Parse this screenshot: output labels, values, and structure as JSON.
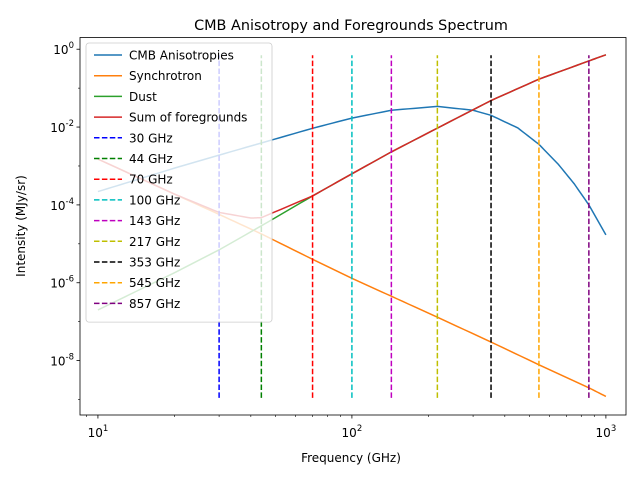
{
  "chart_data": {
    "type": "line",
    "title": "CMB Anisotropy and Foregrounds Spectrum",
    "xlabel": "Frequency (GHz)",
    "ylabel": "Intensity (MJy/sr)",
    "xscale": "log",
    "yscale": "log",
    "xlim": [
      8.5,
      1200
    ],
    "ylim": [
      4e-10,
      2
    ],
    "x_ticks": [
      10,
      100,
      1000
    ],
    "x_tick_labels": [
      "10^1",
      "10^2",
      "10^3"
    ],
    "y_ticks": [
      1e-08,
      1e-06,
      0.0001,
      0.01,
      1
    ],
    "y_tick_labels": [
      "10^-8",
      "10^-6",
      "10^-4",
      "10^-2",
      "10^0"
    ],
    "grid": false,
    "legend_position": "upper-left",
    "series": [
      {
        "name": "CMB Anisotropies",
        "color": "#1f77b4",
        "style": "solid",
        "x": [
          10,
          14,
          20,
          30,
          44,
          70,
          100,
          143,
          217,
          300,
          353,
          450,
          545,
          650,
          750,
          857,
          1000
        ],
        "y": [
          0.00022,
          0.00043,
          0.00088,
          0.0019,
          0.0039,
          0.0093,
          0.017,
          0.027,
          0.034,
          0.027,
          0.02,
          0.0095,
          0.0036,
          0.0011,
          0.00035,
          0.0001,
          1.7e-05
        ]
      },
      {
        "name": "Synchrotron",
        "color": "#ff7f0e",
        "style": "solid",
        "x": [
          10,
          20,
          30,
          44,
          70,
          100,
          143,
          217,
          353,
          545,
          857,
          1000
        ],
        "y": [
          0.0015,
          0.00019,
          5.7e-05,
          1.8e-05,
          4e-06,
          1.3e-06,
          4.5e-07,
          1.3e-07,
          3e-08,
          7.8e-09,
          2e-09,
          1.2e-09
        ]
      },
      {
        "name": "Dust",
        "color": "#2ca02c",
        "style": "solid",
        "x": [
          10,
          20,
          30,
          44,
          70,
          100,
          143,
          217,
          353,
          545,
          857,
          1000
        ],
        "y": [
          2e-07,
          1.8e-06,
          7e-06,
          2.9e-05,
          0.00017,
          0.00063,
          0.0023,
          0.0094,
          0.048,
          0.17,
          0.5,
          0.72
        ]
      },
      {
        "name": "Sum of foregrounds",
        "color": "#d62728",
        "style": "solid",
        "x": [
          10,
          20,
          30,
          40,
          44,
          70,
          100,
          143,
          217,
          353,
          545,
          857,
          1000
        ],
        "y": [
          0.0015,
          0.00019,
          6.4e-05,
          4.6e-05,
          4.7e-05,
          0.00017,
          0.00063,
          0.0023,
          0.0094,
          0.048,
          0.17,
          0.5,
          0.72
        ]
      }
    ],
    "vertical_lines": [
      {
        "name": "30 GHz",
        "x": 30,
        "color": "#0000ff",
        "ymin": 1.1e-09,
        "ymax": 0.7
      },
      {
        "name": "44 GHz",
        "x": 44,
        "color": "#008000",
        "ymin": 1.1e-09,
        "ymax": 0.7
      },
      {
        "name": "70 GHz",
        "x": 70,
        "color": "#ff0000",
        "ymin": 1.1e-09,
        "ymax": 0.7
      },
      {
        "name": "100 GHz",
        "x": 100,
        "color": "#00bfbf",
        "ymin": 1.1e-09,
        "ymax": 0.7
      },
      {
        "name": "143 GHz",
        "x": 143,
        "color": "#bf00bf",
        "ymin": 1.1e-09,
        "ymax": 0.7
      },
      {
        "name": "217 GHz",
        "x": 217,
        "color": "#bfbf00",
        "ymin": 1.1e-09,
        "ymax": 0.7
      },
      {
        "name": "353 GHz",
        "x": 353,
        "color": "#000000",
        "ymin": 1.1e-09,
        "ymax": 0.7
      },
      {
        "name": "545 GHz",
        "x": 545,
        "color": "#ffa500",
        "ymin": 1.1e-09,
        "ymax": 0.7
      },
      {
        "name": "857 GHz",
        "x": 857,
        "color": "#800080",
        "ymin": 1.1e-09,
        "ymax": 0.7
      }
    ]
  }
}
